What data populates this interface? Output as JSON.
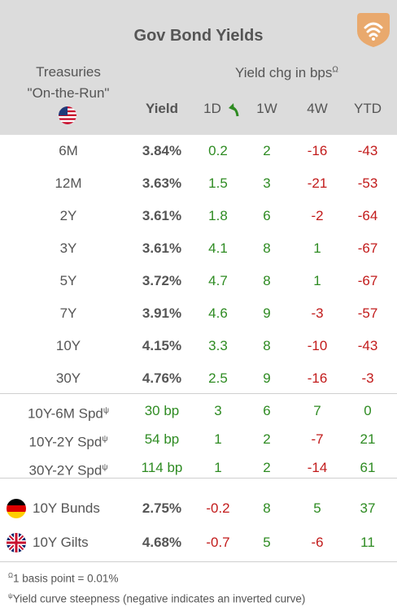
{
  "title": "Gov Bond Yields",
  "treasuries": {
    "line1": "Treasuries",
    "line2": "\"On-the-Run\""
  },
  "change_header": {
    "text": "Yield chg in bps",
    "mark": "Ω"
  },
  "columns": {
    "yield": "Yield",
    "d1": "1D",
    "w1": "1W",
    "w4": "4W",
    "ytd": "YTD"
  },
  "rows": [
    {
      "label": "6M",
      "yield": "3.84%",
      "d1": "0.2",
      "w1": "2",
      "w4": "-16",
      "ytd": "-43"
    },
    {
      "label": "12M",
      "yield": "3.63%",
      "d1": "1.5",
      "w1": "3",
      "w4": "-21",
      "ytd": "-53"
    },
    {
      "label": "2Y",
      "yield": "3.61%",
      "d1": "1.8",
      "w1": "6",
      "w4": "-2",
      "ytd": "-64"
    },
    {
      "label": "3Y",
      "yield": "3.61%",
      "d1": "4.1",
      "w1": "8",
      "w4": "1",
      "ytd": "-67"
    },
    {
      "label": "5Y",
      "yield": "3.72%",
      "d1": "4.7",
      "w1": "8",
      "w4": "1",
      "ytd": "-67"
    },
    {
      "label": "7Y",
      "yield": "3.91%",
      "d1": "4.6",
      "w1": "9",
      "w4": "-3",
      "ytd": "-57"
    },
    {
      "label": "10Y",
      "yield": "4.15%",
      "d1": "3.3",
      "w1": "8",
      "w4": "-10",
      "ytd": "-43"
    },
    {
      "label": "30Y",
      "yield": "4.76%",
      "d1": "2.5",
      "w1": "9",
      "w4": "-16",
      "ytd": "-3"
    }
  ],
  "spreads": [
    {
      "label": "10Y-6M Spd",
      "mark": "ψ",
      "yield": "30 bp",
      "d1": "3",
      "w1": "6",
      "w4": "7",
      "ytd": "0"
    },
    {
      "label": "10Y-2Y Spd",
      "mark": "ψ",
      "yield": "54 bp",
      "d1": "1",
      "w1": "2",
      "w4": "-7",
      "ytd": "21"
    },
    {
      "label": "30Y-2Y Spd",
      "mark": "ψ",
      "yield": "114 bp",
      "d1": "1",
      "w1": "2",
      "w4": "-14",
      "ytd": "61"
    }
  ],
  "foreign": [
    {
      "label": "10Y Bunds",
      "flag": "germany-flag",
      "yield": "2.75%",
      "d1": "-0.2",
      "w1": "8",
      "w4": "5",
      "ytd": "37"
    },
    {
      "label": "10Y Gilts",
      "flag": "uk-flag",
      "yield": "4.68%",
      "d1": "-0.7",
      "w1": "5",
      "w4": "-6",
      "ytd": "11"
    }
  ],
  "footnotes": {
    "omega": {
      "mark": "Ω",
      "text": "1 basis point = 0.01%"
    },
    "psi": {
      "mark": "ψ",
      "text": "Yield curve steepness (negative indicates an inverted curve)"
    }
  },
  "colors": {
    "positive": "#2e8b22",
    "negative": "#c21b1b",
    "header_bg": "#dcdcdc",
    "logo": "#e9a96d"
  },
  "icons": [
    "brand-logo-icon",
    "us-flag-icon",
    "green-up-arrow-icon",
    "germany-flag-icon",
    "uk-flag-icon"
  ]
}
